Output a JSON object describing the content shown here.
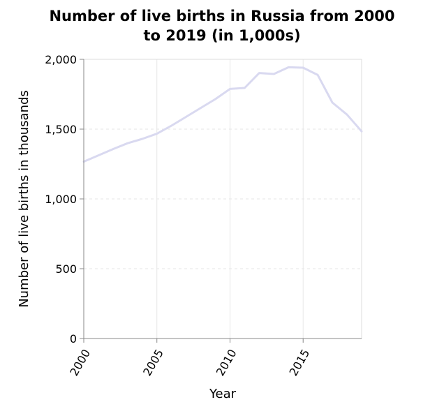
{
  "chart_data": {
    "type": "line",
    "title_lines": [
      "Number of live births in Russia from 2000",
      "to 2019 (in 1,000s)"
    ],
    "xlabel": "Year",
    "ylabel": "Number of live births in thousands",
    "xlim": [
      2000,
      2019
    ],
    "ylim": [
      0,
      2000
    ],
    "x_ticks": [
      2000,
      2005,
      2010,
      2015
    ],
    "x_tick_labels": [
      "2000",
      "2005",
      "2010",
      "2015"
    ],
    "y_ticks": [
      0,
      500,
      1000,
      1500,
      2000
    ],
    "y_tick_labels": [
      "0",
      "500",
      "1,000",
      "1,500",
      "2,000"
    ],
    "grid": true,
    "series": [
      {
        "color": "#d9d9f0",
        "x": [
          2000,
          2001,
          2002,
          2003,
          2004,
          2005,
          2006,
          2007,
          2008,
          2009,
          2010,
          2011,
          2012,
          2013,
          2014,
          2015,
          2016,
          2017,
          2018,
          2019
        ],
        "values": [
          1267,
          1312,
          1357,
          1399,
          1430,
          1467,
          1525,
          1588,
          1652,
          1715,
          1788,
          1795,
          1902,
          1895,
          1943,
          1940,
          1888,
          1690,
          1604,
          1484
        ]
      }
    ]
  }
}
